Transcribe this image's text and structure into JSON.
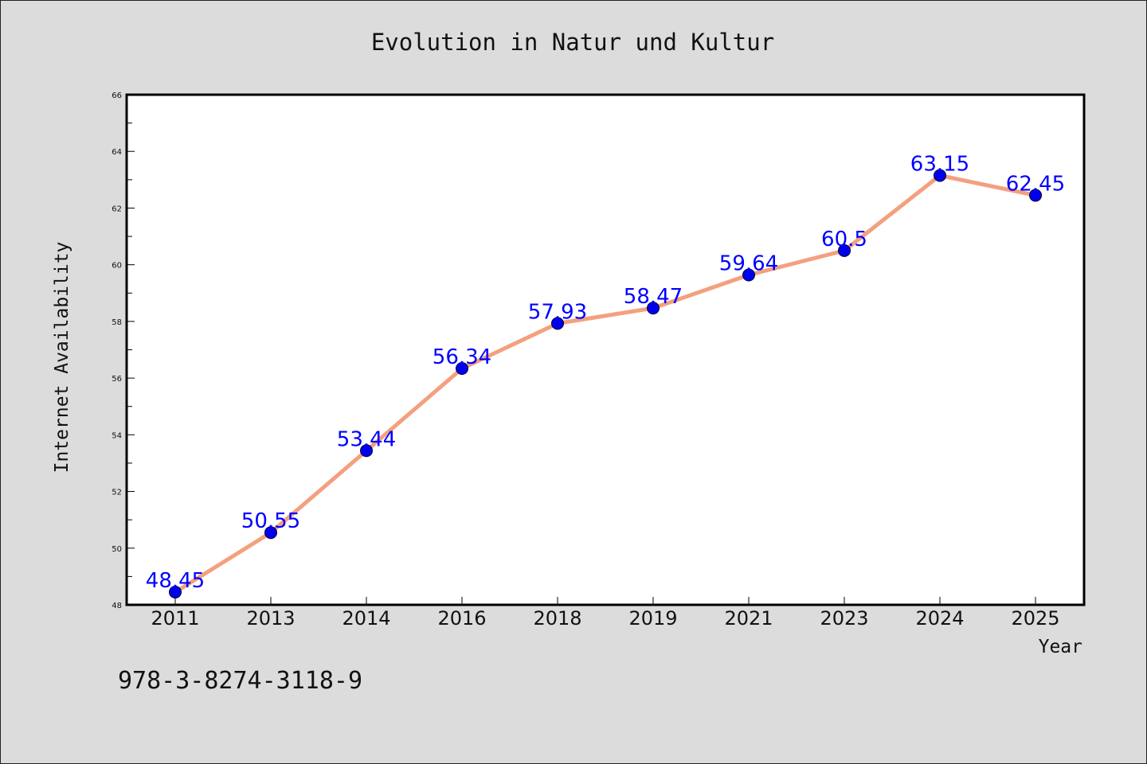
{
  "chart_data": {
    "type": "line",
    "title": "Evolution in Natur und Kultur",
    "xlabel": "Year",
    "ylabel": "Internet Availability",
    "categories": [
      "2011",
      "2013",
      "2014",
      "2016",
      "2018",
      "2019",
      "2021",
      "2023",
      "2024",
      "2025"
    ],
    "series": [
      {
        "values": [
          48.45,
          50.55,
          53.44,
          56.34,
          57.93,
          58.47,
          59.64,
          60.5,
          63.15,
          62.45
        ],
        "value_labels": [
          "48.45",
          "50.55",
          "53.44",
          "56.34",
          "57.93",
          "58.47",
          "59.64",
          "60.5",
          "63.15",
          "62.45"
        ],
        "line_color": "#f4a07f",
        "marker_color": "#0000ee",
        "label_color": "#0000ff"
      }
    ],
    "ylim": [
      48,
      66
    ],
    "yticks": [
      "48",
      "50",
      "52",
      "54",
      "56",
      "58",
      "60",
      "62",
      "64",
      "66"
    ],
    "grid": false,
    "legend": "none"
  },
  "footer": {
    "isbn": "978-3-8274-3118-9"
  },
  "colors": {
    "background": "#dcdcdc",
    "plot_background": "#ffffff",
    "text": "#111111"
  }
}
